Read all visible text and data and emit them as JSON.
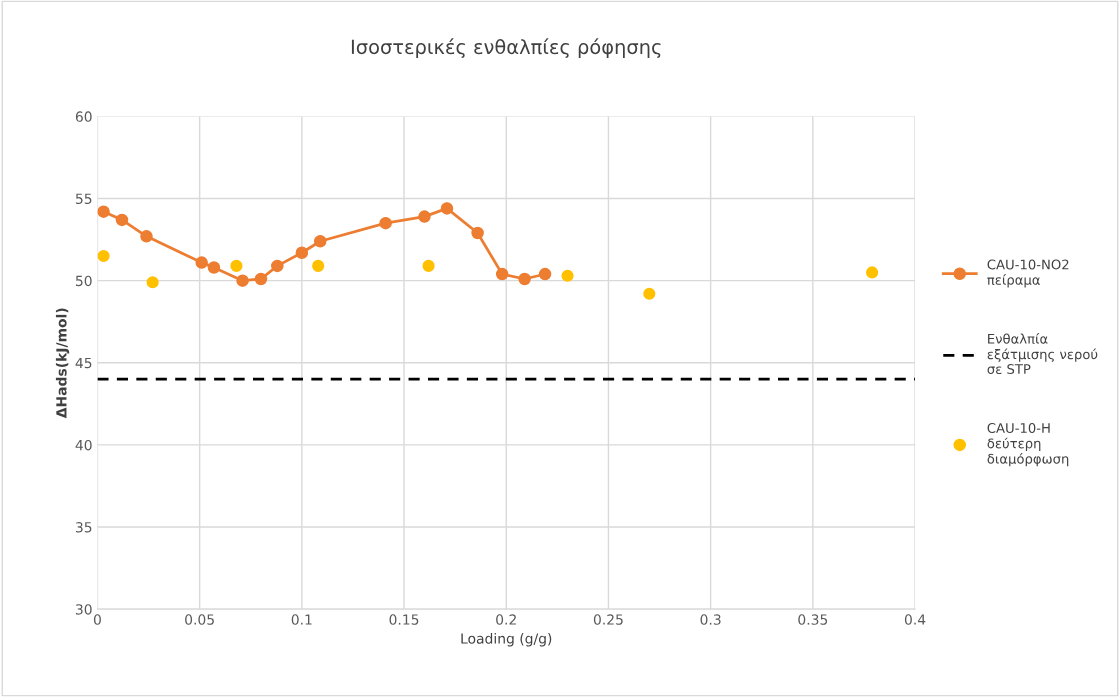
{
  "chart_data": {
    "type": "line",
    "title": "Ισοστερικές ενθαλπίες ρόφησης",
    "xlabel": "Loading (g/g)",
    "ylabel": "ΔHads(kJ/mol)",
    "xlim": [
      0,
      0.4
    ],
    "xticks": [
      0,
      0.05,
      0.1,
      0.15,
      0.2,
      0.25,
      0.3,
      0.35,
      0.4
    ],
    "ylim": [
      30,
      60
    ],
    "yticks": [
      30,
      35,
      40,
      45,
      50,
      55,
      60
    ],
    "grid": true,
    "legend": "right",
    "marker": "circle",
    "series": [
      {
        "name": "CAU-10-NO2 πείραμα",
        "color": "#ed7d31",
        "x": [
          0.003,
          0.012,
          0.024,
          0.051,
          0.057,
          0.071,
          0.08,
          0.088,
          0.1,
          0.109,
          0.141,
          0.16,
          0.171,
          0.186,
          0.198,
          0.209,
          0.219
        ],
        "values": [
          54.2,
          53.7,
          52.7,
          51.1,
          50.8,
          50.0,
          50.1,
          50.9,
          51.7,
          52.4,
          53.5,
          53.9,
          54.4,
          52.9,
          50.4,
          50.1,
          50.4
        ]
      },
      {
        "name": "CAU-10-H δεύτερη διαμόρφωση",
        "type": "scatter",
        "color": "#ffc000",
        "x": [
          0.003,
          0.027,
          0.068,
          0.108,
          0.162,
          0.23,
          0.27,
          0.379
        ],
        "values": [
          51.5,
          49.9,
          50.9,
          50.9,
          50.9,
          50.3,
          49.2,
          50.5
        ]
      }
    ],
    "ref_lines": [
      {
        "axis": "y",
        "value": 44,
        "label": "Ενθαλπία εξάτμισης νερού σε STP",
        "color": "#000000",
        "line_style": "dashed"
      }
    ]
  }
}
